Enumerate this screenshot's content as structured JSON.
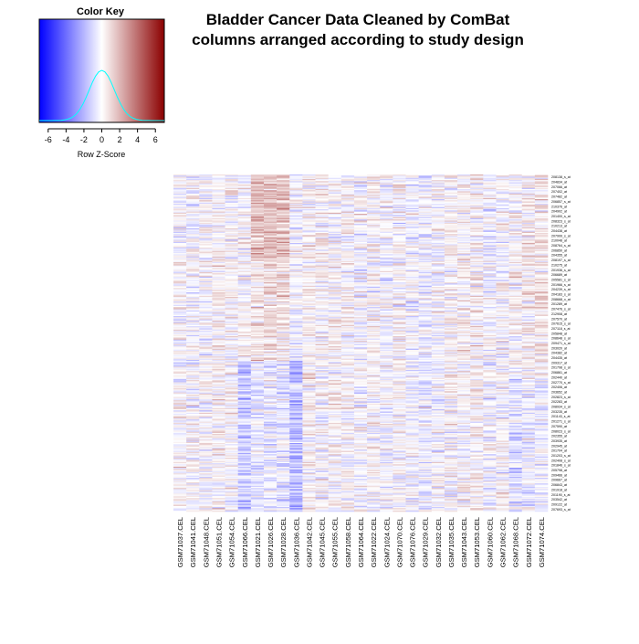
{
  "chart_data": {
    "type": "heatmap",
    "title_line1": "Bladder Cancer Data Cleaned by ComBat",
    "title_line2": "columns arranged according to study design",
    "color_key": {
      "title": "Color Key",
      "xlabel": "Row Z-Score",
      "range": [
        -7,
        7
      ],
      "ticks": [
        -6,
        -4,
        -2,
        0,
        2,
        4,
        6
      ],
      "tick_labels": [
        "-6",
        "-4",
        "-2",
        "0",
        "2",
        "4",
        "6"
      ],
      "low_color": "#0000ff",
      "mid_color": "#ffffff",
      "high_color": "#8b0000",
      "histogram_color": "#00ffff"
    },
    "columns": [
      "GSM71037.CEL",
      "GSM71041.CEL",
      "GSM71048.CEL",
      "GSM71051.CEL",
      "GSM71054.CEL",
      "GSM71066.CEL",
      "GSM71021.CEL",
      "GSM71026.CEL",
      "GSM71028.CEL",
      "GSM71036.CEL",
      "GSM71042.CEL",
      "GSM71045.CEL",
      "GSM71055.CEL",
      "GSM71058.CEL",
      "GSM71064.CEL",
      "GSM71022.CEL",
      "GSM71024.CEL",
      "GSM71070.CEL",
      "GSM71076.CEL",
      "GSM71029.CEL",
      "GSM71032.CEL",
      "GSM71035.CEL",
      "GSM71043.CEL",
      "GSM71053.CEL",
      "GSM71060.CEL",
      "GSM71062.CEL",
      "GSM71068.CEL",
      "GSM71072.CEL",
      "GSM71074.CEL"
    ],
    "n_rows": 300,
    "row_labels": [
      "208138_s_at",
      "204834_at",
      "207066_at",
      "207402_at",
      "207482_at",
      "206857_s_at",
      "210376_at",
      "204902_at",
      "201400_s_at",
      "208323_s_at",
      "210213_at",
      "204438_at",
      "207999_s_at",
      "210048_at",
      "208764_s_at",
      "206850_at",
      "204355_at",
      "208197_s_at",
      "210275_at",
      "201936_s_at",
      "206689_at",
      "205581_s_at",
      "201966_s_at",
      "204239_s_at",
      "204183_s_at",
      "208668_x_at",
      "201289_at",
      "207476_s_at",
      "212908_at",
      "207570_at",
      "207615_s_at",
      "207118_s_at",
      "205848_at",
      "208648_s_at",
      "209471_s_at",
      "203020_at",
      "204382_at",
      "204435_at",
      "209317_at",
      "201798_s_at",
      "206861_at",
      "202440_at",
      "202770_s_at",
      "202406_at",
      "203652_at",
      "202823_s_at",
      "202283_at",
      "208934_s_at",
      "203235_at",
      "201143_s_at",
      "201271_s_at",
      "207590_at",
      "208023_s_at",
      "202355_at",
      "203935_at",
      "202945_at",
      "201704_at",
      "201203_s_at",
      "202408_s_at",
      "201846_s_at",
      "205798_at",
      "209466_at",
      "209667_at",
      "206843_at",
      "201918_at",
      "201190_s_at",
      "203542_at",
      "209122_at",
      "207693_s_at"
    ]
  }
}
